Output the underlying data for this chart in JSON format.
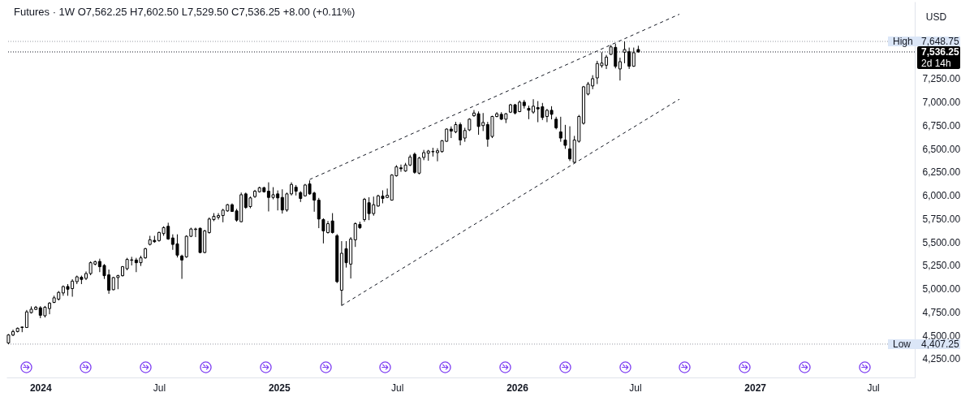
{
  "chart_data": {
    "type": "candlestick",
    "title": "Futures · 1W O7,562.25 H7,602.50 L7,529.50 C7,536.25 +8.00 (+0.11%)",
    "ylabel": "USD",
    "color": "#000000",
    "x": [
      "2023-11-13",
      "2023-11-20",
      "2023-11-27",
      "2023-12-04",
      "2023-12-11",
      "2023-12-18",
      "2023-12-25",
      "2024-01-01",
      "2024-01-08",
      "2024-01-15",
      "2024-01-22",
      "2024-01-29",
      "2024-02-05",
      "2024-02-12",
      "2024-02-19",
      "2024-02-26",
      "2024-03-04",
      "2024-03-11",
      "2024-03-18",
      "2024-03-25",
      "2024-04-01",
      "2024-04-08",
      "2024-04-15",
      "2024-04-22",
      "2024-04-29",
      "2024-05-06",
      "2024-05-13",
      "2024-05-20",
      "2024-05-27",
      "2024-06-03",
      "2024-06-10",
      "2024-06-17",
      "2024-06-24",
      "2024-07-01",
      "2024-07-08",
      "2024-07-15",
      "2024-07-22",
      "2024-07-29",
      "2024-08-05",
      "2024-08-12",
      "2024-08-19",
      "2024-08-26",
      "2024-09-02",
      "2024-09-09",
      "2024-09-16",
      "2024-09-23",
      "2024-09-30",
      "2024-10-07",
      "2024-10-14",
      "2024-10-21",
      "2024-10-28",
      "2024-11-04",
      "2024-11-11",
      "2024-11-18",
      "2024-11-25",
      "2024-12-02",
      "2024-12-09",
      "2024-12-16",
      "2024-12-23",
      "2024-12-30",
      "2025-01-06",
      "2025-01-13",
      "2025-01-20",
      "2025-01-27",
      "2025-02-03",
      "2025-02-10",
      "2025-02-17",
      "2025-02-24",
      "2025-03-03",
      "2025-03-10",
      "2025-03-17",
      "2025-03-24",
      "2025-03-31",
      "2025-04-07",
      "2025-04-14",
      "2025-04-21",
      "2025-04-28",
      "2025-05-05",
      "2025-05-12",
      "2025-05-19",
      "2025-05-26",
      "2025-06-02",
      "2025-06-09",
      "2025-06-16",
      "2025-06-23",
      "2025-06-30",
      "2025-07-07",
      "2025-07-14",
      "2025-07-21",
      "2025-07-28",
      "2025-08-04",
      "2025-08-11",
      "2025-08-18",
      "2025-08-25",
      "2025-09-01",
      "2025-09-08",
      "2025-09-15",
      "2025-09-22",
      "2025-09-29",
      "2025-10-06",
      "2025-10-13",
      "2025-10-20",
      "2025-10-27",
      "2025-11-03",
      "2025-11-10",
      "2025-11-17",
      "2025-11-24",
      "2025-12-01",
      "2025-12-08",
      "2025-12-15",
      "2025-12-22",
      "2025-12-29",
      "2026-01-05",
      "2026-01-12",
      "2026-01-19",
      "2026-01-26",
      "2026-02-02",
      "2026-02-09",
      "2026-02-16",
      "2026-02-23",
      "2026-03-02",
      "2026-03-09",
      "2026-03-16",
      "2026-03-23",
      "2026-03-30",
      "2026-04-06",
      "2026-04-13",
      "2026-04-20",
      "2026-04-27",
      "2026-05-04",
      "2026-05-11",
      "2026-05-18",
      "2026-05-25",
      "2026-06-01",
      "2026-06-08",
      "2026-06-15",
      "2026-06-22",
      "2026-06-29",
      "2026-07-06"
    ],
    "ohlc": [
      [
        4420,
        4515,
        4407.25,
        4505
      ],
      [
        4504,
        4562,
        4493,
        4542
      ],
      [
        4542,
        4585,
        4533,
        4577
      ],
      [
        4585,
        4595,
        4535,
        4590
      ],
      [
        4585,
        4773,
        4580,
        4753
      ],
      [
        4744,
        4811,
        4735,
        4781
      ],
      [
        4779,
        4816,
        4775,
        4802
      ],
      [
        4796,
        4813,
        4685,
        4716
      ],
      [
        4711,
        4816,
        4692,
        4802
      ],
      [
        4788,
        4857,
        4727,
        4846
      ],
      [
        4854,
        4926,
        4846,
        4903
      ],
      [
        4889,
        4976,
        4874,
        4961
      ],
      [
        4955,
        5035,
        4925,
        5024
      ],
      [
        5024,
        5050,
        4925,
        4995
      ],
      [
        5002,
        5102,
        4915,
        5082
      ],
      [
        5076,
        5141,
        5050,
        5128
      ],
      [
        5123,
        5141,
        5050,
        5100
      ],
      [
        5111,
        5185,
        5093,
        5163
      ],
      [
        5163,
        5293,
        5145,
        5279
      ],
      [
        5264,
        5302,
        5250,
        5290
      ],
      [
        5293,
        5322,
        5178,
        5236
      ],
      [
        5250,
        5264,
        5105,
        5140
      ],
      [
        5149,
        5206,
        4946,
        4984
      ],
      [
        4990,
        5128,
        4984,
        5120
      ],
      [
        5120,
        5150,
        4995,
        5140
      ],
      [
        5140,
        5244,
        5131,
        5236
      ],
      [
        5215,
        5331,
        5198,
        5314
      ],
      [
        5305,
        5342,
        5250,
        5310
      ],
      [
        5308,
        5331,
        5178,
        5279
      ],
      [
        5279,
        5354,
        5244,
        5331
      ],
      [
        5331,
        5438,
        5322,
        5429
      ],
      [
        5475,
        5567,
        5464,
        5524
      ],
      [
        5518,
        5567,
        5492,
        5504
      ],
      [
        5516,
        5611,
        5504,
        5603
      ],
      [
        5591,
        5669,
        5567,
        5655
      ],
      [
        5669,
        5707,
        5524,
        5533
      ],
      [
        5544,
        5583,
        5417,
        5475
      ],
      [
        5481,
        5583,
        5335,
        5360
      ],
      [
        5351,
        5365,
        5106,
        5308
      ],
      [
        5342,
        5573,
        5331,
        5562
      ],
      [
        5562,
        5654,
        5553,
        5640
      ],
      [
        5634,
        5654,
        5553,
        5640
      ],
      [
        5648,
        5654,
        5380,
        5388
      ],
      [
        5388,
        5631,
        5380,
        5620
      ],
      [
        5602,
        5764,
        5590,
        5747
      ],
      [
        5741,
        5810,
        5724,
        5776
      ],
      [
        5765,
        5810,
        5741,
        5784
      ],
      [
        5784,
        5856,
        5712,
        5842
      ],
      [
        5834,
        5908,
        5825,
        5900
      ],
      [
        5900,
        5914,
        5825,
        5828
      ],
      [
        5834,
        5856,
        5718,
        5735
      ],
      [
        5718,
        6030,
        5712,
        6007
      ],
      [
        6016,
        6030,
        5856,
        5871
      ],
      [
        5880,
        5988,
        5862,
        5973
      ],
      [
        5987,
        6059,
        5973,
        6045
      ],
      [
        6039,
        6093,
        6030,
        6082
      ],
      [
        6082,
        6093,
        6030,
        6039
      ],
      [
        6045,
        6140,
        5828,
        5978
      ],
      [
        5978,
        6088,
        5958,
        6007
      ],
      [
        6016,
        6053,
        5839,
        5973
      ],
      [
        5978,
        6065,
        5805,
        5843
      ],
      [
        5843,
        6030,
        5825,
        6016
      ],
      [
        6016,
        6140,
        5999,
        6117
      ],
      [
        6088,
        6111,
        5999,
        6045
      ],
      [
        6030,
        6045,
        5929,
        5967
      ],
      [
        5995,
        6123,
        5987,
        6111
      ],
      [
        6123,
        6160,
        6007,
        6016
      ],
      [
        6025,
        6039,
        5825,
        5949
      ],
      [
        5949,
        5973,
        5649,
        5747
      ],
      [
        5741,
        5755,
        5486,
        5620
      ],
      [
        5602,
        5726,
        5591,
        5697
      ],
      [
        5726,
        5810,
        5591,
        5602
      ],
      [
        5568,
        5585,
        5061,
        5076
      ],
      [
        4984,
        5510,
        4820,
        5380
      ],
      [
        5429,
        5510,
        5227,
        5279
      ],
      [
        5264,
        5553,
        5110,
        5533
      ],
      [
        5524,
        5711,
        5448,
        5697
      ],
      [
        5689,
        5718,
        5640,
        5654
      ],
      [
        5741,
        5973,
        5718,
        5958
      ],
      [
        5921,
        5980,
        5735,
        5805
      ],
      [
        5805,
        5987,
        5782,
        5900
      ],
      [
        5886,
        6007,
        5879,
        5995
      ],
      [
        5993,
        6054,
        5915,
        5967
      ],
      [
        5978,
        6073,
        5970,
        6001
      ],
      [
        5949,
        6227,
        5944,
        6218
      ],
      [
        6210,
        6324,
        6201,
        6305
      ],
      [
        6295,
        6330,
        6253,
        6285
      ],
      [
        6261,
        6348,
        6253,
        6325
      ],
      [
        6325,
        6435,
        6313,
        6411
      ],
      [
        6441,
        6459,
        6232,
        6247
      ],
      [
        6238,
        6412,
        6226,
        6400
      ],
      [
        6406,
        6487,
        6377,
        6458
      ],
      [
        6452,
        6487,
        6371,
        6475
      ],
      [
        6467,
        6510,
        6416,
        6470
      ],
      [
        6458,
        6505,
        6365,
        6478
      ],
      [
        6469,
        6593,
        6458,
        6585
      ],
      [
        6579,
        6718,
        6574,
        6710
      ],
      [
        6710,
        6739,
        6614,
        6689
      ],
      [
        6680,
        6787,
        6666,
        6758
      ],
      [
        6758,
        6781,
        6536,
        6593
      ],
      [
        6614,
        6724,
        6574,
        6695
      ],
      [
        6701,
        6826,
        6689,
        6816
      ],
      [
        6853,
        6914,
        6842,
        6882
      ],
      [
        6874,
        6899,
        6649,
        6738
      ],
      [
        6747,
        6882,
        6689,
        6781
      ],
      [
        6758,
        6787,
        6521,
        6602
      ],
      [
        6631,
        6853,
        6614,
        6845
      ],
      [
        6845,
        6891,
        6836,
        6874
      ],
      [
        6868,
        6891,
        6807,
        6816
      ],
      [
        6816,
        6882,
        6774,
        6874
      ],
      [
        6891,
        6980,
        6882,
        6970
      ],
      [
        6970,
        6980,
        6867,
        6882
      ],
      [
        6897,
        7016,
        6891,
        6998
      ],
      [
        6998,
        7022,
        6930,
        6961
      ],
      [
        6932,
        6961,
        6816,
        6912
      ],
      [
        6892,
        7030,
        6874,
        6955
      ],
      [
        6940,
        7010,
        6784,
        6926
      ],
      [
        6949,
        6990,
        6807,
        6834
      ],
      [
        6845,
        6926,
        6784,
        6911
      ],
      [
        6911,
        6955,
        6814,
        6868
      ],
      [
        6816,
        6842,
        6707,
        6724
      ],
      [
        6680,
        6842,
        6574,
        6614
      ],
      [
        6593,
        6755,
        6498,
        6536
      ],
      [
        6498,
        6740,
        6368,
        6391
      ],
      [
        6354,
        6637,
        6348,
        6593
      ],
      [
        6579,
        6862,
        6565,
        6845
      ],
      [
        6772,
        7172,
        6758,
        7163
      ],
      [
        7085,
        7215,
        7071,
        7192
      ],
      [
        7172,
        7287,
        7137,
        7250
      ],
      [
        7258,
        7441,
        7192,
        7412
      ],
      [
        7389,
        7533,
        7367,
        7417
      ],
      [
        7394,
        7504,
        7353,
        7481
      ],
      [
        7510,
        7611,
        7504,
        7590
      ],
      [
        7585,
        7625,
        7360,
        7382
      ],
      [
        7354,
        7475,
        7230,
        7432
      ],
      [
        7533,
        7648.75,
        7415,
        7562
      ],
      [
        7539,
        7583,
        7354,
        7383
      ],
      [
        7383,
        7583,
        7377,
        7528.25
      ],
      [
        7562.25,
        7602.5,
        7529.5,
        7536.25
      ]
    ],
    "series": [
      {
        "type": "line",
        "x": [
          "2025-02-17",
          "2026-09-07"
        ],
        "values": [
          6170,
          7940
        ],
        "color": "#131722",
        "line_style": "dashed"
      },
      {
        "type": "line",
        "x": [
          "2025-04-07",
          "2026-09-07"
        ],
        "values": [
          4820,
          7030
        ],
        "color": "#131722",
        "line_style": "dashed"
      }
    ],
    "xlim": [
      "2023-11-10",
      "2027-09-03"
    ],
    "xticks": [
      {
        "value": "2024-01-01",
        "label": "2024"
      },
      {
        "value": "2024-07-01",
        "label": "Jul"
      },
      {
        "value": "2025-01-01",
        "label": "2025"
      },
      {
        "value": "2025-07-01",
        "label": "Jul"
      },
      {
        "value": "2026-01-01",
        "label": "2026"
      },
      {
        "value": "2026-07-01",
        "label": "Jul"
      },
      {
        "value": "2027-01-01",
        "label": "2027"
      },
      {
        "value": "2027-07-01",
        "label": "Jul"
      }
    ],
    "ylim": [
      4050,
      8075
    ],
    "yticks": [
      {
        "value": 4250,
        "label": "4,250.00"
      },
      {
        "value": 4500,
        "label": "4,500.00"
      },
      {
        "value": 4750,
        "label": "4,750.00"
      },
      {
        "value": 5000,
        "label": "5,000.00"
      },
      {
        "value": 5250,
        "label": "5,250.00"
      },
      {
        "value": 5500,
        "label": "5,500.00"
      },
      {
        "value": 5750,
        "label": "5,750.00"
      },
      {
        "value": 6000,
        "label": "6,000.00"
      },
      {
        "value": 6250,
        "label": "6,250.00"
      },
      {
        "value": 6500,
        "label": "6,500.00"
      },
      {
        "value": 6750,
        "label": "6,750.00"
      },
      {
        "value": 7000,
        "label": "7,000.00"
      },
      {
        "value": 7250,
        "label": "7,250.00"
      }
    ],
    "ref_lines": [
      {
        "axis": "y",
        "value": 7648.75,
        "label": "High",
        "line_style": "dotted",
        "color": "#9598a1"
      },
      {
        "axis": "y",
        "value": 7536.25,
        "label": "2d 14h",
        "line_style": "dotted",
        "color": "#131722"
      },
      {
        "axis": "y",
        "value": 4407.25,
        "label": "Low",
        "line_style": "dotted",
        "color": "#9598a1"
      }
    ],
    "annotations": [
      "7,648.75",
      "7,536.25",
      "4,407.25"
    ]
  }
}
